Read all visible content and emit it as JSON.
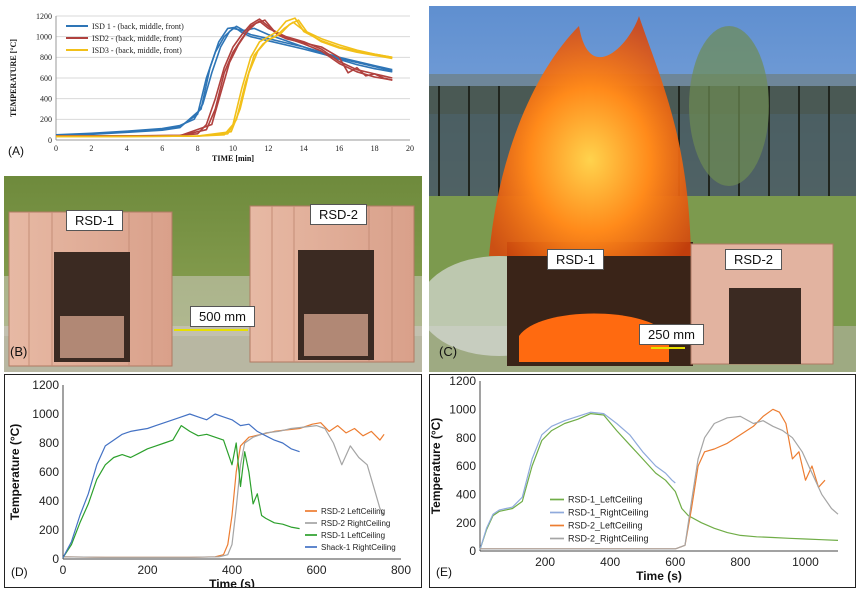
{
  "colors": {
    "isd1": "#2e75b6",
    "isd2": "#b0413e",
    "isd3": "#f2c019",
    "orange": "#ed7d31",
    "gray": "#a5a5a5",
    "green": "#2ca02c",
    "blue": "#4472c4",
    "green_e": "#70ad47",
    "blue_e": "#8faadc"
  },
  "panel_letters": {
    "a": "(A)",
    "b": "(B)",
    "c": "(C)",
    "d": "(D)",
    "e": "(E)"
  },
  "photos": {
    "b": {
      "rsd1": "RSD-1",
      "rsd2": "RSD-2",
      "gap": "500 mm"
    },
    "c": {
      "rsd1": "RSD-1",
      "rsd2": "RSD-2",
      "gap": "250 mm"
    }
  },
  "chart_data": [
    {
      "id": "A",
      "type": "line",
      "xlabel": "TIME [min]",
      "ylabel": "TEMPERATURE [°C]",
      "xlim": [
        0,
        20
      ],
      "ylim": [
        0,
        1200
      ],
      "xticks": [
        0,
        2,
        4,
        6,
        8,
        10,
        12,
        14,
        16,
        18,
        20
      ],
      "yticks": [
        0,
        200,
        400,
        600,
        800,
        1000,
        1200
      ],
      "legend_position": "top-left",
      "grid": "horizontal",
      "series": [
        {
          "name": "ISD 1 - (back, middle, front)",
          "color_key": "isd1",
          "group": "ISD 1",
          "x": [
            0,
            2,
            4,
            6,
            7,
            7.8,
            8.3,
            8.8,
            9.3,
            9.8,
            10.2,
            10.6,
            11.2,
            12,
            13,
            14,
            15,
            16,
            17,
            18,
            19
          ],
          "y": [
            50,
            65,
            85,
            110,
            140,
            200,
            350,
            650,
            900,
            1050,
            1100,
            1060,
            1080,
            1020,
            960,
            900,
            840,
            780,
            730,
            690,
            660
          ]
        },
        {
          "name": "",
          "color_key": "isd1",
          "group": "ISD 1",
          "x": [
            0,
            2,
            4,
            6,
            7,
            8,
            8.5,
            9,
            9.5,
            10,
            10.5,
            11,
            12,
            13,
            14,
            16,
            18,
            19
          ],
          "y": [
            45,
            60,
            80,
            100,
            130,
            250,
            600,
            850,
            1000,
            1080,
            1060,
            1020,
            980,
            940,
            900,
            800,
            720,
            680
          ]
        },
        {
          "name": "",
          "color_key": "isd1",
          "group": "ISD 1",
          "x": [
            0,
            2,
            4,
            6,
            7,
            8.2,
            8.7,
            9.2,
            9.7,
            10.1,
            10.5,
            11,
            12,
            14,
            16,
            18,
            19
          ],
          "y": [
            40,
            55,
            75,
            95,
            120,
            300,
            700,
            950,
            1080,
            1090,
            1040,
            1000,
            960,
            880,
            790,
            710,
            670
          ]
        },
        {
          "name": "ISD2 - (back, middle, front)",
          "color_key": "isd2",
          "group": "ISD2",
          "x": [
            0,
            4,
            7,
            8,
            8.5,
            9,
            9.5,
            10,
            10.5,
            11,
            11.5,
            12,
            12.5,
            13,
            14,
            15,
            16,
            16.5,
            17,
            17.5,
            18,
            18.5,
            19
          ],
          "y": [
            40,
            40,
            45,
            60,
            150,
            400,
            700,
            900,
            1020,
            1120,
            1170,
            1100,
            1020,
            980,
            940,
            900,
            800,
            650,
            700,
            620,
            640,
            600,
            580
          ]
        },
        {
          "name": "",
          "color_key": "isd2",
          "group": "ISD2",
          "x": [
            0,
            4,
            7,
            8.5,
            9,
            9.5,
            10,
            10.5,
            11,
            11.5,
            12,
            13,
            14,
            15,
            16,
            17,
            18,
            19
          ],
          "y": [
            40,
            40,
            42,
            100,
            300,
            650,
            850,
            980,
            1100,
            1150,
            1080,
            1000,
            950,
            880,
            760,
            680,
            640,
            600
          ]
        },
        {
          "name": "",
          "color_key": "isd2",
          "group": "ISD2",
          "x": [
            0,
            4,
            7,
            8.8,
            9.3,
            9.8,
            10.3,
            10.8,
            11.3,
            11.8,
            12.3,
            13,
            14,
            15,
            16,
            17,
            18,
            19
          ],
          "y": [
            40,
            40,
            42,
            150,
            450,
            750,
            920,
            1050,
            1130,
            1160,
            1060,
            990,
            930,
            860,
            740,
            660,
            610,
            580
          ]
        },
        {
          "name": "ISD3 - (back, middle, front)",
          "color_key": "isd3",
          "group": "ISD3",
          "x": [
            0,
            4,
            8,
            9.5,
            10,
            10.5,
            11,
            11.5,
            12,
            12.5,
            13,
            13.5,
            14,
            15,
            16,
            17,
            18,
            19
          ],
          "y": [
            35,
            35,
            38,
            50,
            150,
            500,
            800,
            950,
            1000,
            1050,
            1150,
            1180,
            1050,
            960,
            900,
            860,
            830,
            800
          ]
        },
        {
          "name": "",
          "color_key": "isd3",
          "group": "ISD3",
          "x": [
            0,
            4,
            8,
            9.7,
            10.2,
            10.7,
            11.2,
            11.7,
            12.2,
            12.7,
            13.2,
            13.7,
            14.2,
            15,
            16,
            17,
            18,
            19
          ],
          "y": [
            35,
            35,
            38,
            60,
            200,
            550,
            820,
            930,
            990,
            1030,
            1120,
            1160,
            1040,
            950,
            890,
            850,
            820,
            790
          ]
        },
        {
          "name": "",
          "color_key": "isd3",
          "group": "ISD3",
          "x": [
            0,
            4,
            8,
            9.9,
            10.4,
            10.9,
            11.4,
            11.9,
            12.4,
            12.9,
            13.4,
            14,
            15,
            16,
            17,
            18,
            19
          ],
          "y": [
            35,
            35,
            38,
            80,
            300,
            650,
            860,
            960,
            1000,
            1080,
            1140,
            1060,
            980,
            920,
            870,
            830,
            800
          ]
        }
      ]
    },
    {
      "id": "D",
      "type": "line",
      "xlabel": "Time (s)",
      "ylabel": "Temperature (°C)",
      "xlim": [
        0,
        800
      ],
      "ylim": [
        0,
        1200
      ],
      "xticks": [
        0,
        200,
        400,
        600,
        800
      ],
      "yticks": [
        0,
        200,
        400,
        600,
        800,
        1000,
        1200
      ],
      "legend_position": "bottom-right",
      "grid": "none",
      "series": [
        {
          "name": "RSD-2 LeftCeiling",
          "color_key": "orange",
          "x": [
            0,
            100,
            200,
            300,
            360,
            380,
            390,
            400,
            410,
            420,
            440,
            470,
            500,
            530,
            560,
            590,
            610,
            630,
            650,
            670,
            690,
            710,
            730,
            750,
            760
          ],
          "y": [
            15,
            12,
            12,
            12,
            15,
            30,
            100,
            300,
            600,
            780,
            840,
            860,
            880,
            890,
            900,
            930,
            940,
            880,
            920,
            870,
            900,
            850,
            880,
            820,
            860
          ]
        },
        {
          "name": "RSD-2 RightCeiling",
          "color_key": "gray",
          "x": [
            0,
            100,
            200,
            300,
            370,
            390,
            400,
            410,
            420,
            430,
            450,
            480,
            510,
            540,
            570,
            600,
            620,
            640,
            660,
            680,
            700,
            720,
            740,
            750,
            760
          ],
          "y": [
            15,
            12,
            12,
            12,
            15,
            30,
            100,
            350,
            650,
            800,
            840,
            870,
            880,
            900,
            910,
            920,
            900,
            800,
            650,
            780,
            700,
            650,
            450,
            350,
            300
          ]
        },
        {
          "name": "RSD-1 LeftCeiling",
          "color_key": "green",
          "x": [
            0,
            20,
            40,
            60,
            80,
            100,
            120,
            140,
            160,
            180,
            200,
            220,
            240,
            260,
            280,
            300,
            320,
            340,
            360,
            380,
            400,
            410,
            420,
            430,
            440,
            450,
            460,
            470,
            480,
            500,
            520,
            540,
            560
          ],
          "y": [
            10,
            100,
            250,
            380,
            550,
            650,
            700,
            720,
            700,
            730,
            760,
            780,
            800,
            820,
            920,
            880,
            850,
            860,
            840,
            820,
            650,
            800,
            500,
            740,
            600,
            380,
            450,
            300,
            280,
            250,
            240,
            220,
            210
          ]
        },
        {
          "name": "Shack-1 RightCeiling",
          "color_key": "blue",
          "x": [
            0,
            20,
            40,
            60,
            80,
            100,
            120,
            140,
            160,
            180,
            200,
            220,
            240,
            260,
            280,
            300,
            320,
            340,
            360,
            380,
            400,
            420,
            440,
            460,
            480,
            500,
            520,
            540,
            560
          ],
          "y": [
            10,
            120,
            300,
            450,
            650,
            780,
            820,
            860,
            880,
            890,
            900,
            920,
            940,
            960,
            980,
            1000,
            980,
            960,
            1000,
            980,
            960,
            920,
            930,
            880,
            850,
            820,
            800,
            760,
            740
          ]
        }
      ]
    },
    {
      "id": "E",
      "type": "line",
      "xlabel": "Time (s)",
      "ylabel": "Temperature (°C)",
      "xlim": [
        0,
        1100
      ],
      "ylim": [
        0,
        1200
      ],
      "xticks": [
        200,
        400,
        600,
        800,
        1000
      ],
      "yticks": [
        0,
        200,
        400,
        600,
        800,
        1000,
        1200
      ],
      "legend_position": "bottom-left",
      "grid": "none",
      "series": [
        {
          "name": "RSD-1_LeftCeiling",
          "color_key": "green_e",
          "x": [
            0,
            20,
            40,
            60,
            80,
            100,
            130,
            160,
            190,
            220,
            260,
            300,
            340,
            380,
            420,
            460,
            500,
            540,
            570,
            600,
            620,
            640,
            680,
            720,
            760,
            800,
            850,
            900,
            950,
            1000,
            1050,
            1100
          ],
          "y": [
            10,
            150,
            250,
            280,
            290,
            300,
            350,
            600,
            780,
            850,
            900,
            930,
            970,
            960,
            850,
            750,
            650,
            550,
            500,
            420,
            300,
            250,
            200,
            160,
            130,
            110,
            100,
            95,
            90,
            85,
            80,
            75
          ]
        },
        {
          "name": "RSD-1_RightCeiling",
          "color_key": "blue_e",
          "x": [
            0,
            20,
            40,
            60,
            80,
            100,
            130,
            160,
            190,
            220,
            260,
            300,
            340,
            380,
            420,
            460,
            500,
            540,
            570,
            590,
            600
          ],
          "y": [
            10,
            160,
            260,
            290,
            300,
            310,
            380,
            650,
            820,
            880,
            920,
            950,
            980,
            970,
            900,
            820,
            700,
            600,
            550,
            500,
            480
          ]
        },
        {
          "name": "RSD-2_LeftCeiling",
          "color_key": "orange",
          "x": [
            0,
            200,
            400,
            600,
            630,
            650,
            670,
            690,
            720,
            760,
            800,
            840,
            870,
            900,
            920,
            940,
            960,
            980,
            1000,
            1020,
            1040,
            1060
          ],
          "y": [
            15,
            15,
            15,
            15,
            40,
            300,
            600,
            700,
            720,
            760,
            820,
            880,
            950,
            1000,
            980,
            900,
            650,
            700,
            500,
            600,
            450,
            500
          ]
        },
        {
          "name": "RSD-2_RightCeiling",
          "color_key": "gray",
          "x": [
            0,
            200,
            400,
            600,
            630,
            650,
            670,
            690,
            720,
            760,
            800,
            840,
            870,
            900,
            930,
            960,
            990,
            1020,
            1050,
            1080,
            1100
          ],
          "y": [
            15,
            15,
            15,
            15,
            40,
            350,
            650,
            800,
            900,
            940,
            950,
            900,
            920,
            880,
            850,
            800,
            700,
            550,
            400,
            300,
            260
          ]
        }
      ]
    }
  ]
}
